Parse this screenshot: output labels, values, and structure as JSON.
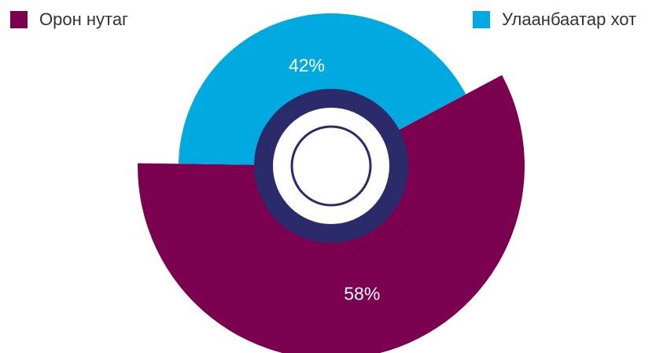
{
  "chart_data": {
    "type": "pie",
    "categories": [
      "Орон нутаг",
      "Улаанбаатар хот"
    ],
    "values": [
      58,
      42
    ],
    "value_labels": [
      "58%",
      "42%"
    ],
    "colors": [
      "#7b0050",
      "#00a9e0"
    ],
    "center_ring_color": "#2b2a6b",
    "legend_position": "top"
  }
}
